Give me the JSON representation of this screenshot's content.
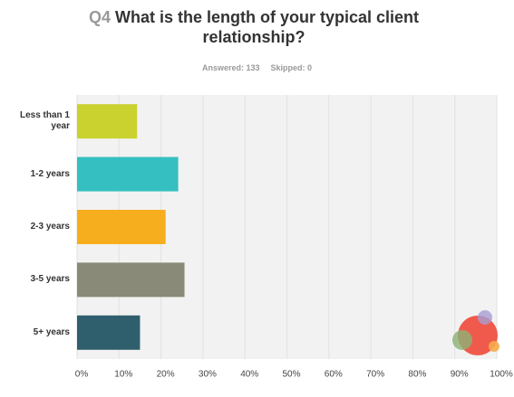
{
  "chart_data": {
    "type": "bar",
    "orientation": "horizontal",
    "question_number": "Q4",
    "title": "What is the length of your typical client relationship?",
    "answered": "Answered: 133",
    "skipped": "Skipped: 0",
    "categories": [
      "Less than 1 year",
      "1-2 years",
      "2-3 years",
      "3-5 years",
      "5+ years"
    ],
    "values": [
      14.3,
      24.1,
      21.1,
      25.6,
      15.0
    ],
    "colors": [
      "#c9d22f",
      "#35bfc0",
      "#f7ae1e",
      "#8a8a78",
      "#2f5f6c"
    ],
    "xlim": [
      0,
      100
    ],
    "xticks": [
      {
        "value": 0,
        "label": "0%"
      },
      {
        "value": 10,
        "label": "10%"
      },
      {
        "value": 20,
        "label": "20%"
      },
      {
        "value": 30,
        "label": "30%"
      },
      {
        "value": 40,
        "label": "40%"
      },
      {
        "value": 50,
        "label": "50%"
      },
      {
        "value": 60,
        "label": "60%"
      },
      {
        "value": 70,
        "label": "70%"
      },
      {
        "value": 80,
        "label": "80%"
      },
      {
        "value": 90,
        "label": "90%"
      },
      {
        "value": 100,
        "label": "100%"
      }
    ],
    "grid": true
  }
}
